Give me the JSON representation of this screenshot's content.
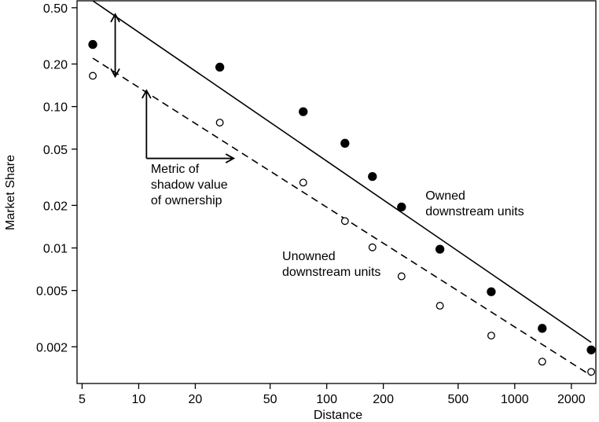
{
  "chart_data": {
    "type": "scatter",
    "xlabel": "Distance",
    "ylabel": "Market Share",
    "xscale": "log",
    "yscale": "log",
    "xlim": [
      4.7,
      2700
    ],
    "ylim": [
      0.0011,
      0.56
    ],
    "grid": false,
    "legend": "none",
    "xticks": [
      5,
      10,
      20,
      50,
      100,
      200,
      500,
      1000,
      2000
    ],
    "xtick_labels": [
      "5",
      "10",
      "20",
      "50",
      "100",
      "200",
      "500",
      "1000",
      "2000"
    ],
    "yticks": [
      0.5,
      0.2,
      0.1,
      0.05,
      0.02,
      0.01,
      0.005,
      0.002
    ],
    "ytick_labels": [
      "0.50",
      "0.20",
      "0.10",
      "0.05",
      "0.02",
      "0.01",
      "0.005",
      "0.002"
    ],
    "series": [
      {
        "marker": "filled-circle",
        "x": [
          5.7,
          27,
          75,
          125,
          175,
          250,
          400,
          750,
          1400,
          2550
        ],
        "y": [
          0.275,
          0.19,
          0.092,
          0.055,
          0.032,
          0.0195,
          0.0098,
          0.0049,
          0.0027,
          0.0019
        ]
      },
      {
        "marker": "open-circle",
        "x": [
          5.7,
          27,
          75,
          125,
          175,
          250,
          400,
          750,
          1400,
          2550
        ],
        "y": [
          0.165,
          0.077,
          0.029,
          0.0155,
          0.0101,
          0.0063,
          0.0039,
          0.0024,
          0.00157,
          0.00133
        ]
      }
    ],
    "fit_lines": [
      {
        "style": "solid",
        "x": [
          5.7,
          2550
        ],
        "y": [
          0.56,
          0.00215
        ]
      },
      {
        "style": "dashed",
        "x": [
          5.7,
          2550
        ],
        "y": [
          0.22,
          0.00125
        ]
      }
    ],
    "arrows": [
      {
        "style": "double-headed",
        "x": [
          7.5,
          7.5
        ],
        "y": [
          0.45,
          0.163
        ]
      },
      {
        "style": "single-headed",
        "x": [
          11,
          11
        ],
        "y": [
          0.043,
          0.13
        ]
      },
      {
        "style": "single-headed",
        "x": [
          11,
          32
        ],
        "y": [
          0.043,
          0.043
        ]
      }
    ],
    "annotations": [
      {
        "lines": [
          "Metric of",
          "shadow value",
          "of ownership"
        ],
        "x": 11.6,
        "y": 0.034
      },
      {
        "lines": [
          "Owned",
          "downstream units"
        ],
        "x": 335,
        "y": 0.022
      },
      {
        "lines": [
          "Unowned",
          "downstream units"
        ],
        "x": 58,
        "y": 0.0082
      }
    ]
  }
}
